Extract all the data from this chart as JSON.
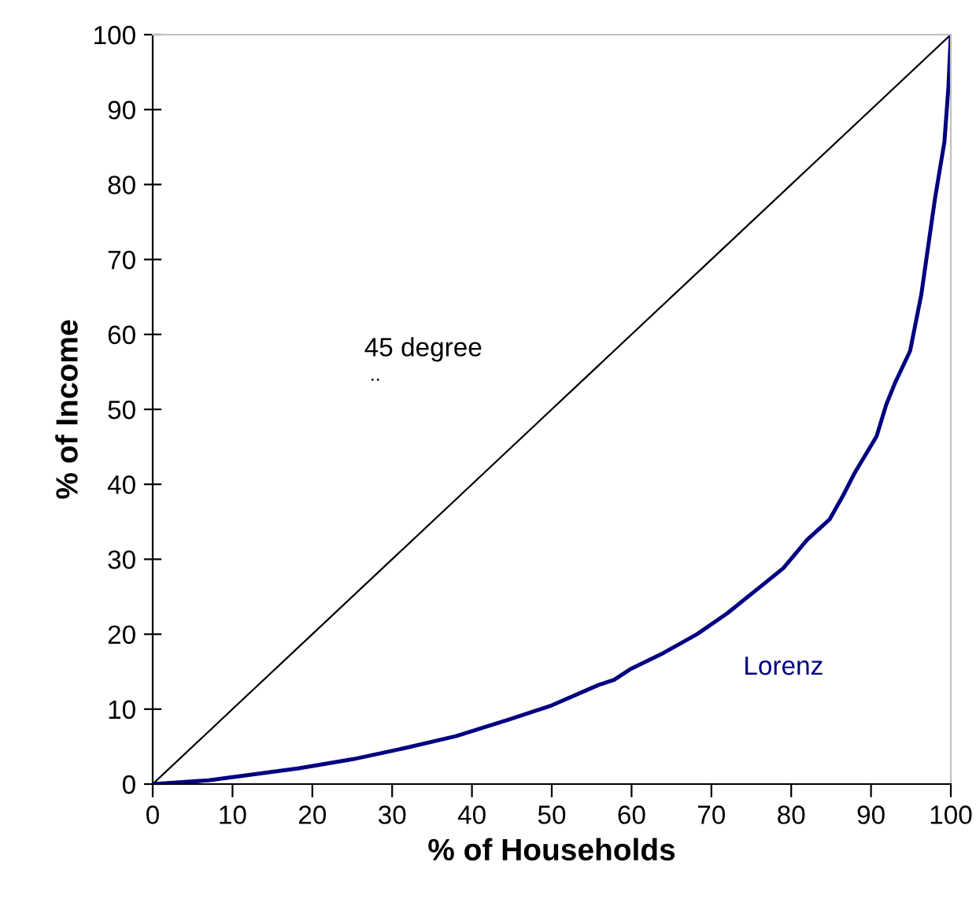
{
  "chart_data": {
    "type": "line",
    "xlabel": "% of Households",
    "ylabel": "% of Income",
    "xlim": [
      0,
      100
    ],
    "ylim": [
      0,
      100
    ],
    "xticks": [
      0,
      10,
      20,
      30,
      40,
      50,
      60,
      70,
      80,
      90,
      100
    ],
    "yticks": [
      0,
      10,
      20,
      30,
      40,
      50,
      60,
      70,
      80,
      90,
      100
    ],
    "grid": false,
    "legend": false,
    "marker": "none",
    "line_style": "solid",
    "annotations": [
      ".."
    ],
    "series": [
      {
        "name": "45 degree",
        "color": "#000000",
        "x": [
          0,
          10,
          20,
          30,
          40,
          50,
          60,
          70,
          80,
          90,
          100
        ],
        "values": [
          0,
          10,
          20,
          30,
          40,
          50,
          60,
          70,
          80,
          90,
          100
        ]
      },
      {
        "name": "Lorenz",
        "color": "#000080",
        "x": [
          0,
          3,
          7,
          12,
          18.3,
          25,
          31.6,
          38,
          44.6,
          50,
          55.8,
          57.8,
          59.8,
          64,
          68.2,
          72,
          76.1,
          79,
          82,
          84.8,
          86.5,
          88,
          90.7,
          91.9,
          93,
          94.9,
          96.3,
          98,
          99.2,
          99.7,
          100
        ],
        "values": [
          0,
          0.2,
          0.5,
          1.2,
          2.1,
          3.3,
          4.8,
          6.4,
          8.6,
          10.5,
          13.2,
          13.9,
          15.3,
          17.5,
          20,
          22.8,
          26.3,
          28.8,
          32.6,
          35.3,
          38.5,
          41.6,
          46.4,
          50.6,
          53.5,
          57.8,
          65.3,
          78,
          85.7,
          93,
          100
        ]
      }
    ]
  }
}
